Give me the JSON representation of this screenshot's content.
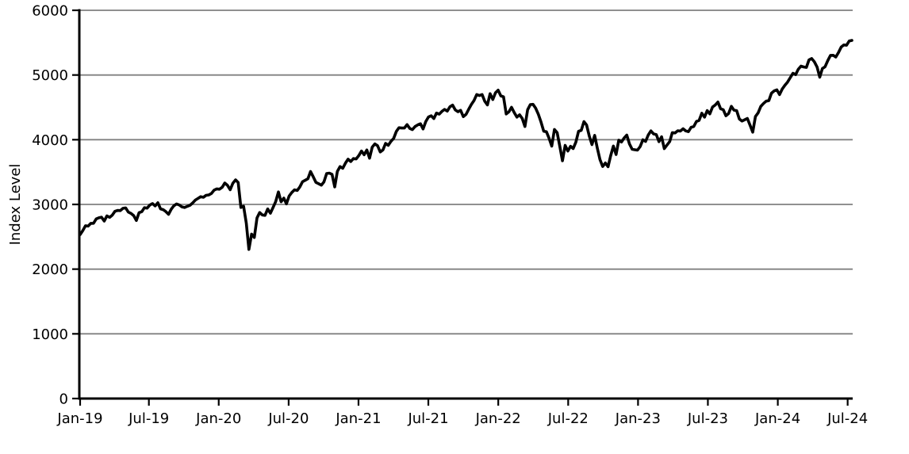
{
  "chart_data": {
    "type": "line",
    "title": "",
    "xlabel": "",
    "ylabel": "Index Level",
    "ylim": [
      0,
      6000
    ],
    "yticks": [
      0,
      1000,
      2000,
      3000,
      4000,
      5000,
      6000
    ],
    "xticks": [
      {
        "label": "Jan-19",
        "pos": 0.0
      },
      {
        "label": "Jul-19",
        "pos": 0.0891
      },
      {
        "label": "Jan-20",
        "pos": 0.1796
      },
      {
        "label": "Jul-20",
        "pos": 0.2702
      },
      {
        "label": "Jan-21",
        "pos": 0.3607
      },
      {
        "label": "Jul-21",
        "pos": 0.4512
      },
      {
        "label": "Jan-22",
        "pos": 0.5418
      },
      {
        "label": "Jul-22",
        "pos": 0.6324
      },
      {
        "label": "Jan-23",
        "pos": 0.7229
      },
      {
        "label": "Jul-23",
        "pos": 0.8134
      },
      {
        "label": "Jan-24",
        "pos": 0.904
      },
      {
        "label": "Jul-24",
        "pos": 0.9945
      }
    ],
    "grid": "horizontal",
    "legend": "none",
    "colors": {
      "line": "#000000",
      "grid": "#808080",
      "axis": "#000000",
      "text": "#000000",
      "background": "#ffffff"
    },
    "series": [
      {
        "name": "Index Level",
        "cadence": "weekly",
        "values": [
          2532,
          2596,
          2671,
          2665,
          2707,
          2708,
          2776,
          2793,
          2803,
          2743,
          2822,
          2801,
          2834,
          2893,
          2907,
          2905,
          2940,
          2946,
          2881,
          2860,
          2826,
          2752,
          2873,
          2887,
          2950,
          2942,
          2990,
          3014,
          2977,
          3026,
          2932,
          2919,
          2889,
          2847,
          2926,
          2979,
          3007,
          2992,
          2962,
          2952,
          2970,
          2986,
          3023,
          3067,
          3093,
          3120,
          3110,
          3141,
          3146,
          3169,
          3221,
          3240,
          3235,
          3265,
          3330,
          3295,
          3226,
          3328,
          3380,
          3338,
          2954,
          2972,
          2711,
          2305,
          2541,
          2489,
          2790,
          2875,
          2837,
          2831,
          2930,
          2864,
          2955,
          3044,
          3194,
          3041,
          3098,
          3009,
          3130,
          3185,
          3225,
          3216,
          3271,
          3351,
          3373,
          3397,
          3508,
          3427,
          3341,
          3319,
          3298,
          3348,
          3477,
          3484,
          3465,
          3270,
          3509,
          3585,
          3558,
          3638,
          3699,
          3663,
          3709,
          3703,
          3756,
          3825,
          3768,
          3841,
          3714,
          3887,
          3935,
          3907,
          3811,
          3842,
          3943,
          3913,
          3975,
          4020,
          4129,
          4185,
          4180,
          4181,
          4233,
          4174,
          4156,
          4204,
          4230,
          4247,
          4166,
          4281,
          4352,
          4370,
          4327,
          4412,
          4395,
          4437,
          4468,
          4442,
          4509,
          4535,
          4459,
          4433,
          4455,
          4357,
          4391,
          4471,
          4545,
          4605,
          4698,
          4683,
          4698,
          4595,
          4538,
          4712,
          4621,
          4726,
          4766,
          4677,
          4663,
          4398,
          4432,
          4501,
          4419,
          4349,
          4385,
          4329,
          4204,
          4463,
          4543,
          4546,
          4488,
          4393,
          4272,
          4132,
          4123,
          4024,
          3901,
          4158,
          4109,
          3901,
          3675,
          3912,
          3825,
          3899,
          3863,
          3962,
          4130,
          4145,
          4280,
          4228,
          4058,
          3924,
          4067,
          3873,
          3693,
          3586,
          3640,
          3583,
          3753,
          3901,
          3771,
          3993,
          3965,
          4026,
          4072,
          3934,
          3852,
          3845,
          3840,
          3895,
          3999,
          3973,
          4071,
          4136,
          4090,
          4079,
          3970,
          4046,
          3862,
          3917,
          3971,
          4109,
          4105,
          4138,
          4134,
          4169,
          4136,
          4124,
          4192,
          4205,
          4282,
          4299,
          4410,
          4348,
          4450,
          4399,
          4505,
          4536,
          4582,
          4478,
          4464,
          4370,
          4406,
          4516,
          4457,
          4450,
          4320,
          4288,
          4309,
          4328,
          4224,
          4117,
          4358,
          4415,
          4514,
          4559,
          4595,
          4604,
          4719,
          4755,
          4770,
          4697,
          4784,
          4840,
          4891,
          4959,
          5027,
          5006,
          5089,
          5137,
          5124,
          5117,
          5234,
          5254,
          5204,
          5123,
          4967,
          5100,
          5128,
          5223,
          5303,
          5305,
          5278,
          5347,
          5432,
          5465,
          5460,
          5525,
          5535
        ]
      }
    ]
  }
}
